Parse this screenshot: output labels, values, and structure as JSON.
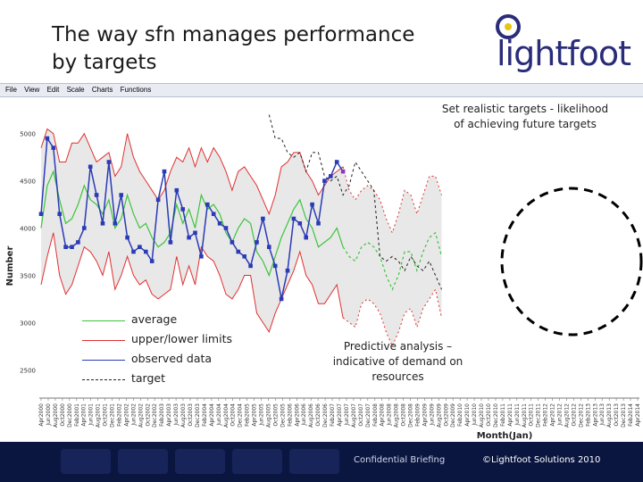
{
  "slide": {
    "title": "The way sfn manages performance by targets",
    "logo_text": "lightfoot"
  },
  "menubar": {
    "items": [
      "File",
      "View",
      "Edit",
      "Scale",
      "Charts",
      "Functions"
    ]
  },
  "callouts": {
    "top": "Set realistic targets - likelihood of achieving future targets",
    "middle": "Predictive analysis – indicative of demand on resources"
  },
  "legend": [
    {
      "label": "average",
      "color": "#3cc43c",
      "style": "solid"
    },
    {
      "label": "upper/lower limits",
      "color": "#e03030",
      "style": "solid"
    },
    {
      "label": "observed data",
      "color": "#2a3bb5",
      "style": "solid"
    },
    {
      "label": "target",
      "color": "#222222",
      "style": "dashed"
    }
  ],
  "footer": {
    "confidential": "Confidential Briefing",
    "copyright": "©Lightfoot Solutions 2010"
  },
  "colors": {
    "average": "#3cc43c",
    "limits": "#e03030",
    "observed": "#2a3bb5",
    "target": "#222222",
    "band": "#e8e8e8",
    "footer": "#0b1640",
    "logo": "#2a2c7a"
  },
  "chart_data": {
    "type": "line",
    "ylabel": "Number",
    "xlabel": "Month(Jan)",
    "ylim": [
      2200,
      5300
    ],
    "y_ticks": [
      {
        "value": 5000,
        "label": "5000"
      },
      {
        "value": 4500,
        "label": "4500"
      },
      {
        "value": 4000,
        "label": "4000"
      },
      {
        "value": 3500,
        "label": "3500"
      },
      {
        "value": 3000,
        "label": "3000"
      },
      {
        "value": 2500,
        "label": "2500"
      }
    ],
    "x_tick_labels": [
      "Apr2000",
      "Jun2000",
      "Aug2000",
      "Oct2000",
      "Dec2000",
      "Feb2001",
      "Apr2001",
      "Jun2001",
      "Aug2001",
      "Oct2001",
      "Dec2001",
      "Feb2002",
      "Apr2002",
      "Jun2002",
      "Aug2002",
      "Oct2002",
      "Dec2002",
      "Feb2003",
      "Apr2003",
      "Jun2003",
      "Aug2003",
      "Oct2003",
      "Dec2003",
      "Feb2004",
      "Apr2004",
      "Jun2004",
      "Aug2004",
      "Oct2004",
      "Dec2004",
      "Feb2005",
      "Apr2005",
      "Jun2005",
      "Aug2005",
      "Oct2005",
      "Dec2005",
      "Feb2006",
      "Apr2006",
      "Jun2006",
      "Aug2006",
      "Oct2006",
      "Dec2006",
      "Feb2007",
      "Apr2007",
      "Jun2007",
      "Aug2007",
      "Oct2007",
      "Dec2007",
      "Feb2008",
      "Apr2008",
      "Jun2008",
      "Aug2008",
      "Oct2008",
      "Dec2008",
      "Feb2009",
      "Apr2009",
      "Jun2009",
      "Aug2009",
      "Oct2009",
      "Dec2009",
      "Feb2010",
      "Apr2010",
      "Jun2010",
      "Aug2010",
      "Oct2010",
      "Dec2010",
      "Feb2011",
      "Apr2011",
      "Jun2011",
      "Aug2011",
      "Oct2011",
      "Dec2011",
      "Feb2012",
      "Apr2012",
      "Jun2012",
      "Aug2012",
      "Oct2012",
      "Dec2012",
      "Feb2013",
      "Apr2013",
      "Jun2013",
      "Aug2013",
      "Oct2013",
      "Dec2013",
      "Feb2014",
      "Apr2014"
    ],
    "series": [
      {
        "name": "average",
        "values": [
          4000,
          4450,
          4600,
          4300,
          4050,
          4100,
          4250,
          4450,
          4300,
          4250,
          4150,
          4300,
          4000,
          4100,
          4350,
          4150,
          4000,
          4050,
          3900,
          3800,
          3850,
          3950,
          4250,
          4050,
          4200,
          4000,
          4350,
          4200,
          4250,
          4150,
          3950,
          3850,
          4000,
          4100,
          4050,
          3750,
          3650,
          3500,
          3700,
          3900,
          4050,
          4200,
          4300,
          4100,
          4000,
          3800,
          3850,
          3900,
          4000,
          3800,
          3700,
          3650,
          3800,
          3850,
          3800,
          3700,
          3500,
          3350,
          3500,
          3750,
          3750,
          3550,
          3750,
          3900,
          3950,
          3700
        ]
      },
      {
        "name": "upper limit",
        "values": [
          4850,
          5050,
          5000,
          4700,
          4700,
          4900,
          4900,
          5000,
          4850,
          4700,
          4750,
          4800,
          4550,
          4650,
          5000,
          4750,
          4600,
          4500,
          4400,
          4300,
          4400,
          4600,
          4750,
          4700,
          4850,
          4650,
          4850,
          4700,
          4850,
          4750,
          4600,
          4400,
          4600,
          4650,
          4550,
          4450,
          4300,
          4150,
          4350,
          4650,
          4700,
          4800,
          4800,
          4600,
          4500,
          4350,
          4450,
          4550,
          4600,
          4650,
          4400,
          4300,
          4400,
          4450,
          4400,
          4300,
          4100,
          3950,
          4150,
          4400,
          4350,
          4150,
          4350,
          4550,
          4550,
          4350
        ]
      },
      {
        "name": "lower limit",
        "values": [
          3400,
          3700,
          3950,
          3500,
          3300,
          3400,
          3600,
          3800,
          3750,
          3650,
          3500,
          3750,
          3350,
          3500,
          3700,
          3500,
          3400,
          3450,
          3300,
          3250,
          3300,
          3350,
          3700,
          3400,
          3600,
          3400,
          3800,
          3700,
          3650,
          3500,
          3300,
          3250,
          3350,
          3500,
          3500,
          3100,
          3000,
          2900,
          3100,
          3250,
          3400,
          3550,
          3750,
          3500,
          3400,
          3200,
          3200,
          3300,
          3400,
          3050,
          3000,
          2950,
          3200,
          3250,
          3200,
          3100,
          2900,
          2750,
          2900,
          3100,
          3150,
          2950,
          3150,
          3250,
          3350,
          3050
        ]
      },
      {
        "name": "observed data",
        "values": [
          4150,
          4950,
          4850,
          4150,
          3800,
          3800,
          3850,
          4000,
          4650,
          4350,
          4050,
          4700,
          4050,
          4350,
          3900,
          3750,
          3800,
          3750,
          3650,
          4300,
          4600,
          3850,
          4400,
          4200,
          3900,
          3950,
          3700,
          4250,
          4150,
          4050,
          4000,
          3850,
          3750,
          3700,
          3600,
          3850,
          4100,
          3800,
          3600,
          3250,
          3550,
          4100,
          4050,
          3900,
          4250,
          4050,
          4500,
          4550,
          4700,
          4600
        ]
      },
      {
        "name": "target",
        "values": [
          5200,
          4950,
          4950,
          4800,
          4750,
          4800,
          4600,
          4800,
          4800,
          4550,
          4500,
          4550,
          4350,
          4450,
          4700,
          4600,
          4500,
          4400,
          3700,
          3650,
          3700,
          3650,
          3550,
          3700,
          3600,
          3550,
          3650,
          3500,
          3350
        ]
      }
    ],
    "target_start_index": 37,
    "observed_end_index": 49,
    "forecast_start_index": 50
  }
}
